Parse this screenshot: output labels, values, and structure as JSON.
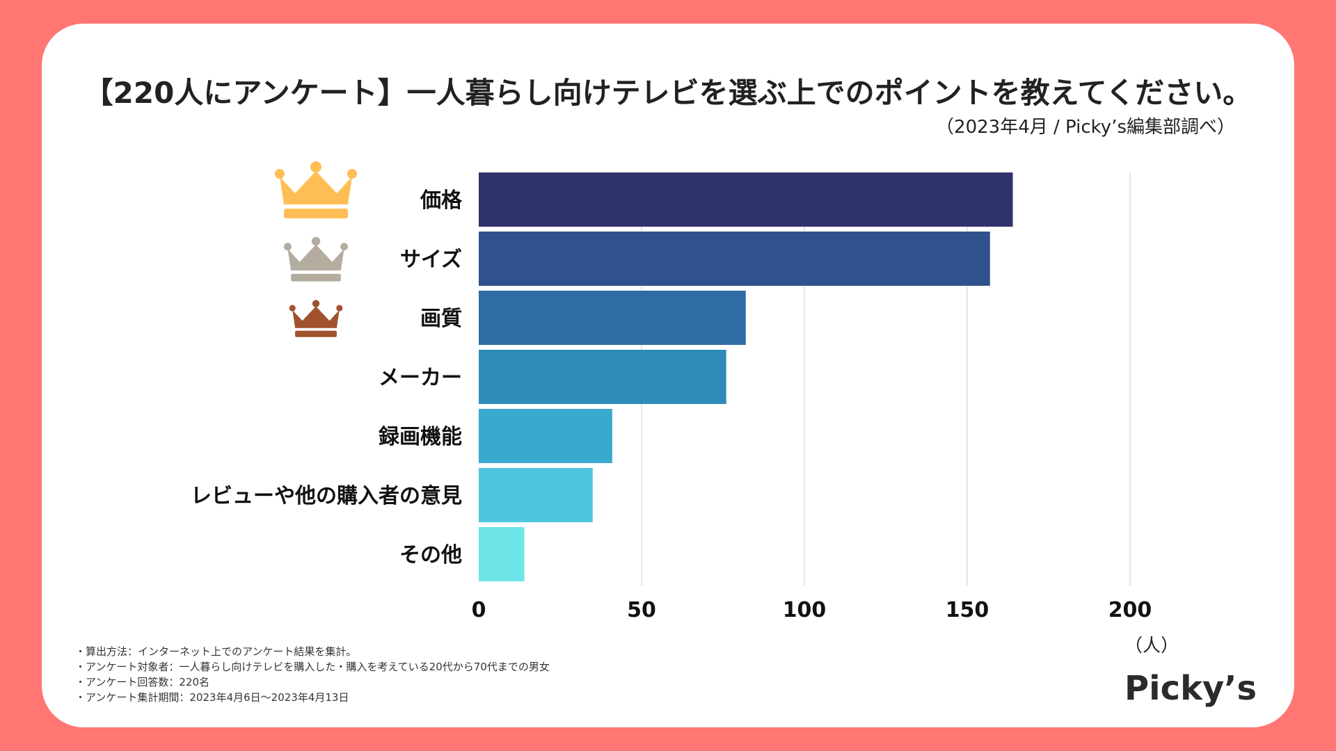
{
  "title": "【220人にアンケート】一人暮らし向けテレビを選ぶ上でのポイントを教えてください。",
  "subtitle": "（2023年4月 / Picky’s編集部調べ）",
  "colors": {
    "background": "#FF7673",
    "bars": [
      "#30336B",
      "#30528C",
      "#2F6CA5",
      "#2E8BBA",
      "#3AA9CE",
      "#4EC6DE",
      "#6DE4E8"
    ],
    "crowns": [
      "#FFBE55",
      "#B5ACA0",
      "#A0522D"
    ]
  },
  "crown_icons": [
    "gold-crown-icon",
    "silver-crown-icon",
    "bronze-crown-icon"
  ],
  "chart_data": {
    "type": "bar",
    "orientation": "horizontal",
    "categories": [
      "価格",
      "サイズ",
      "画質",
      "メーカー",
      "録画機能",
      "レビューや他の購入者の意見",
      "その他"
    ],
    "values": [
      164,
      157,
      82,
      76,
      41,
      35,
      14
    ],
    "xlim": [
      0,
      250
    ],
    "xticks": [
      0,
      50,
      100,
      150,
      200
    ],
    "xlabel": "（人）",
    "grid": true
  },
  "unit_label": "（人）",
  "notes": [
    "・算出方法：インターネット上でのアンケート結果を集計。",
    "・アンケート対象者：一人暮らし向けテレビを購入した・購入を考えている20代から70代までの男女",
    "・アンケート回答数：220名",
    "・アンケート集計期間：2023年4月6日〜2023年4月13日"
  ],
  "logo": "Picky’s"
}
